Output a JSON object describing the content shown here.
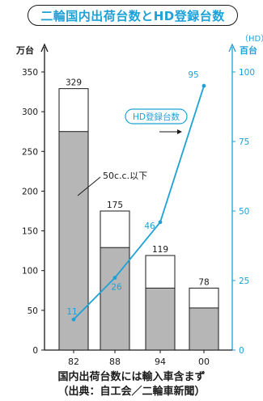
{
  "title": "二輪国内出荷台数とHD登録台数",
  "note_line1": "国内出荷台数には輸入車含まず",
  "note_line2": "（出典：自工会／二輪車新聞）",
  "colors": {
    "accent": "#1da1d6",
    "bar_fill": "#b6b6b6",
    "axis": "#1a1a1a"
  },
  "chart_data": {
    "type": "bar",
    "categories": [
      "82",
      "88",
      "94",
      "00"
    ],
    "series": [
      {
        "values": [
          329,
          175,
          119,
          78
        ]
      },
      {
        "name": "50c.c.以下",
        "values": [
          275,
          129,
          78,
          53
        ]
      },
      {
        "name": "HD登録台数",
        "type": "line",
        "values": [
          11,
          26,
          46,
          95
        ]
      }
    ],
    "left_axis": {
      "unit": "万台",
      "min": 0,
      "max": 350,
      "ticks": [
        0,
        50,
        100,
        150,
        200,
        250,
        300,
        350
      ]
    },
    "right_axis": {
      "unit_top": "（HD）",
      "unit_bottom": "百台",
      "min": 0,
      "max": 100,
      "ticks": [
        0,
        25,
        50,
        75,
        100
      ]
    },
    "annotations": {
      "under50": "50c.c.以下",
      "hd": "HD登録台数"
    },
    "grid": false
  }
}
